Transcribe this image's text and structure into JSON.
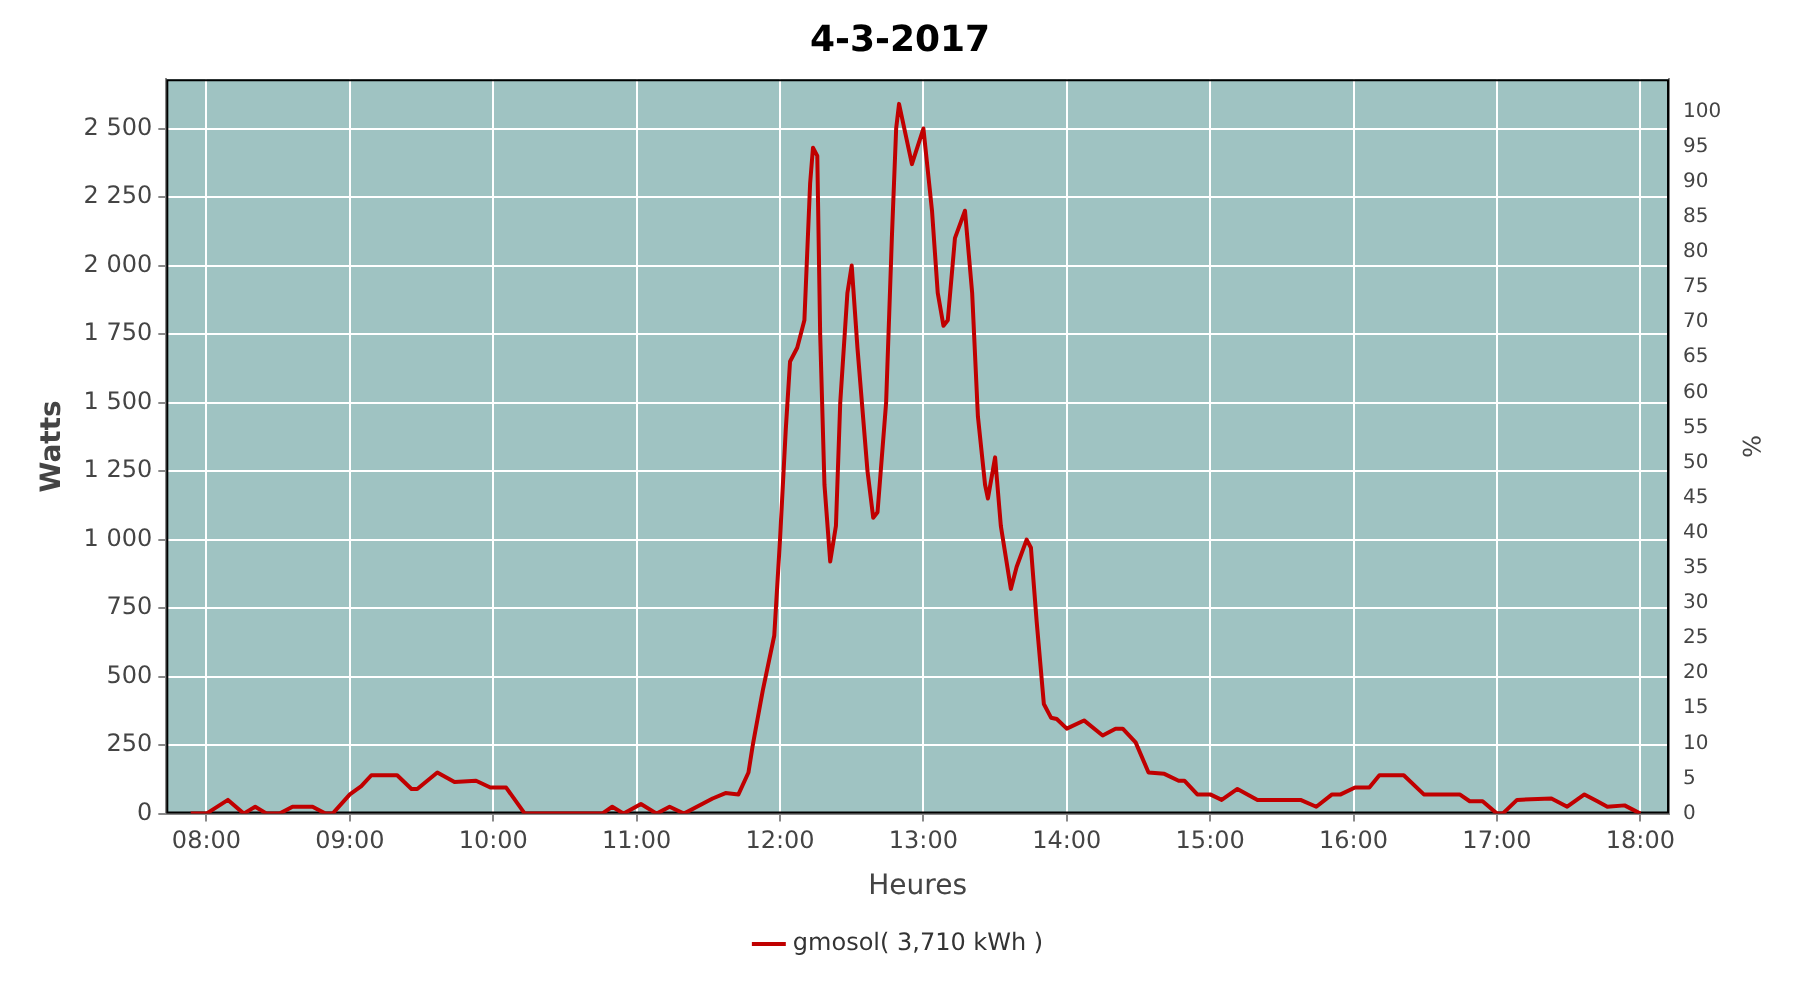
{
  "chart_data": {
    "type": "line",
    "title": "4-3-2017",
    "xlabel": "Heures",
    "ylabel": "Watts",
    "y2label": "%",
    "xlim": [
      7.72,
      18.2
    ],
    "xticks": [
      {
        "value": 8,
        "label": "08:00"
      },
      {
        "value": 9,
        "label": "09:00"
      },
      {
        "value": 10,
        "label": "10:00"
      },
      {
        "value": 11,
        "label": "11:00"
      },
      {
        "value": 12,
        "label": "12:00"
      },
      {
        "value": 13,
        "label": "13:00"
      },
      {
        "value": 14,
        "label": "14:00"
      },
      {
        "value": 15,
        "label": "15:00"
      },
      {
        "value": 16,
        "label": "16:00"
      },
      {
        "value": 17,
        "label": "17:00"
      },
      {
        "value": 18,
        "label": "18:00"
      }
    ],
    "ylim": [
      0,
      2680
    ],
    "yticks": [
      0,
      250,
      500,
      750,
      {
        "value": 1000,
        "label": "1 000"
      },
      {
        "value": 1250,
        "label": "1 250"
      },
      {
        "value": 1500,
        "label": "1 500"
      },
      {
        "value": 1750,
        "label": "1 750"
      },
      {
        "value": 2000,
        "label": "2 000"
      },
      {
        "value": 2250,
        "label": "2 250"
      },
      {
        "value": 2500,
        "label": "2 500"
      }
    ],
    "y2lim": [
      0,
      104.6
    ],
    "y2ticks": [
      0,
      5,
      10,
      15,
      20,
      25,
      30,
      35,
      40,
      45,
      50,
      55,
      60,
      65,
      70,
      75,
      80,
      85,
      90,
      95,
      100
    ],
    "grid": true,
    "legend": "bottom",
    "marker": "none",
    "line_style": "solid",
    "series": [
      {
        "name": "gmosol( 3,710 kWh )",
        "color": "#c00000",
        "x": [
          7.89,
          8.0,
          8.15,
          8.26,
          8.34,
          8.42,
          8.51,
          8.6,
          8.74,
          8.83,
          8.88,
          9.0,
          9.08,
          9.15,
          9.33,
          9.43,
          9.47,
          9.61,
          9.73,
          9.88,
          9.98,
          10.09,
          10.22,
          10.76,
          10.83,
          10.91,
          11.03,
          11.14,
          11.23,
          11.33,
          11.53,
          11.62,
          11.71,
          11.78,
          11.81,
          11.88,
          11.96,
          12.0,
          12.04,
          12.07,
          12.12,
          12.17,
          12.21,
          12.23,
          12.26,
          12.28,
          12.31,
          12.35,
          12.39,
          12.42,
          12.47,
          12.5,
          12.54,
          12.61,
          12.65,
          12.68,
          12.74,
          12.78,
          12.81,
          12.83,
          12.92,
          13.0,
          13.06,
          13.1,
          13.14,
          13.17,
          13.22,
          13.29,
          13.34,
          13.38,
          13.43,
          13.45,
          13.5,
          13.54,
          13.61,
          13.65,
          13.72,
          13.75,
          13.79,
          13.84,
          13.89,
          13.93,
          14.0,
          14.12,
          14.25,
          14.34,
          14.39,
          14.48,
          14.57,
          14.68,
          14.78,
          14.82,
          14.91,
          15.0,
          15.08,
          15.19,
          15.33,
          15.63,
          15.74,
          15.85,
          15.91,
          16.01,
          16.11,
          16.18,
          16.35,
          16.49,
          16.6,
          16.74,
          16.81,
          16.9,
          17.0,
          17.04,
          17.14,
          17.38,
          17.49,
          17.61,
          17.7,
          17.77,
          17.89,
          18.0
        ],
        "values": [
          0,
          0,
          50,
          0,
          25,
          0,
          0,
          25,
          25,
          0,
          0,
          70,
          100,
          140,
          140,
          90,
          90,
          150,
          115,
          120,
          95,
          95,
          0,
          0,
          25,
          0,
          35,
          0,
          25,
          0,
          55,
          75,
          70,
          150,
          250,
          450,
          650,
          1000,
          1400,
          1650,
          1700,
          1800,
          2300,
          2430,
          2400,
          1750,
          1200,
          920,
          1050,
          1500,
          1900,
          2000,
          1700,
          1250,
          1080,
          1100,
          1500,
          2100,
          2500,
          2590,
          2370,
          2500,
          2200,
          1900,
          1780,
          1800,
          2100,
          2200,
          1900,
          1450,
          1200,
          1150,
          1300,
          1050,
          820,
          900,
          1000,
          970,
          700,
          400,
          350,
          345,
          310,
          340,
          285,
          310,
          310,
          260,
          150,
          145,
          120,
          120,
          70,
          70,
          50,
          90,
          50,
          50,
          25,
          70,
          70,
          95,
          95,
          140,
          140,
          70,
          70,
          70,
          45,
          45,
          0,
          0,
          50,
          55,
          25,
          70,
          45,
          25,
          30,
          0
        ]
      }
    ]
  }
}
